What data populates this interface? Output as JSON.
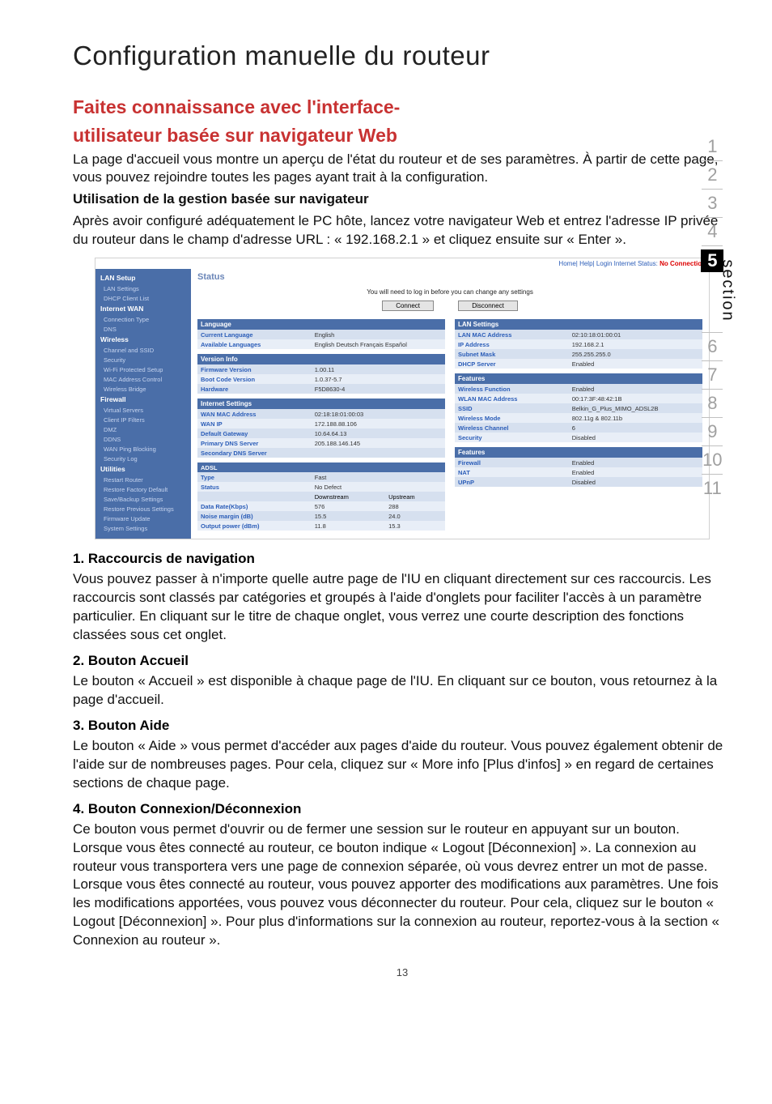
{
  "page": {
    "main_title": "Configuration manuelle du routeur",
    "page_number": "13"
  },
  "sec1": {
    "h_l1": "Faites connaissance avec l'interface-",
    "h_l2": "utilisateur basée sur navigateur Web",
    "p1": "La page d'accueil vous montre un aperçu de l'état du routeur et de ses paramètres. À partir de cette page, vous pouvez rejoindre toutes les pages ayant trait à la configuration.",
    "p2_bold": "Utilisation de la gestion basée sur navigateur",
    "p3": "Après avoir configuré adéquatement le PC hôte, lancez votre navigateur Web et entrez l'adresse IP privée du routeur dans le champ d'adresse URL : « 192.168.2.1 » et cliquez ensuite sur « Enter »."
  },
  "items": {
    "i1_h": "1. Raccourcis de navigation",
    "i1_p": "Vous pouvez passer à n'importe quelle autre page de l'IU en cliquant directement sur ces raccourcis. Les raccourcis sont classés par catégories et groupés à l'aide d'onglets pour faciliter l'accès à un paramètre particulier. En cliquant sur le titre de chaque onglet, vous verrez une courte description des fonctions classées sous cet onglet.",
    "i2_h": "2.   Bouton Accueil",
    "i2_p": "Le bouton « Accueil » est disponible à chaque page de l'IU. En cliquant sur ce bouton, vous retournez à la page d'accueil.",
    "i3_h": "3. Bouton Aide",
    "i3_p": "Le bouton « Aide » vous permet d'accéder aux pages d'aide du routeur. Vous pouvez également obtenir de l'aide sur de nombreuses pages. Pour cela, cliquez sur « More info [Plus d'infos] » en regard de certaines sections de chaque page.",
    "i4_h": "4.   Bouton Connexion/Déconnexion",
    "i4_p": "Ce bouton vous permet d'ouvrir ou de fermer une session sur le routeur en appuyant sur un bouton. Lorsque vous êtes connecté au routeur, ce bouton indique « Logout [Déconnexion] ». La connexion au routeur vous transportera vers une page de connexion séparée, où vous devrez entrer un mot de passe. Lorsque vous êtes connecté au routeur, vous pouvez apporter des modifications aux paramètres. Une fois les modifications apportées, vous pouvez vous déconnecter du routeur. Pour cela, cliquez sur le bouton « Logout [Déconnexion] ». Pour plus d'informations sur la connexion au routeur, reportez-vous à la section « Connexion au routeur »."
  },
  "sidenav": {
    "section_label": "section",
    "nums": [
      "1",
      "2",
      "3",
      "4",
      "5",
      "6",
      "7",
      "8",
      "9",
      "10",
      "11"
    ],
    "active": "5"
  },
  "router": {
    "top_links": "Home| Help| Login   Internet Status:",
    "top_status": "No Connection",
    "status_label": "Status",
    "note": "You will need to log in before you can change any settings",
    "btn_connect": "Connect",
    "btn_disconnect": "Disconnect",
    "nav": [
      {
        "h": "LAN Setup"
      },
      {
        "i": "LAN Settings"
      },
      {
        "i": "DHCP Client List"
      },
      {
        "h": "Internet WAN"
      },
      {
        "i": "Connection Type"
      },
      {
        "i": "DNS"
      },
      {
        "h": "Wireless"
      },
      {
        "i": "Channel and SSID"
      },
      {
        "i": "Security"
      },
      {
        "i": "Wi-Fi Protected Setup"
      },
      {
        "i": "MAC Address Control"
      },
      {
        "i": "Wireless Bridge"
      },
      {
        "h": "Firewall"
      },
      {
        "i": "Virtual Servers"
      },
      {
        "i": "Client IP Filters"
      },
      {
        "i": "DMZ"
      },
      {
        "i": "DDNS"
      },
      {
        "i": "WAN Ping Blocking"
      },
      {
        "i": "Security Log"
      },
      {
        "h": "Utilities"
      },
      {
        "i": "Restart Router"
      },
      {
        "i": "Restore Factory Default"
      },
      {
        "i": "Save/Backup Settings"
      },
      {
        "i": "Restore Previous Settings"
      },
      {
        "i": "Firmware Update"
      },
      {
        "i": "System Settings"
      }
    ],
    "lang": {
      "grp": "Language",
      "cur_k": "Current Language",
      "cur_v": "English",
      "avail_k": "Available Languages",
      "avail_v": "English  Deutsch  Français  Español"
    },
    "ver": {
      "grp": "Version Info",
      "r": [
        [
          "Firmware Version",
          "1.00.11"
        ],
        [
          "Boot Code Version",
          "1.0.37-5.7"
        ],
        [
          "Hardware",
          "F5D8630-4"
        ]
      ]
    },
    "inet": {
      "grp": "Internet Settings",
      "r": [
        [
          "WAN MAC Address",
          "02:18:18:01:00:03"
        ],
        [
          "WAN IP",
          "172.188.88.106"
        ],
        [
          "Default Gateway",
          "10.64.64.13"
        ],
        [
          "Primary DNS Server",
          "205.188.146.145"
        ],
        [
          "Secondary DNS Server",
          ""
        ]
      ]
    },
    "adsl": {
      "grp": "ADSL",
      "type_k": "Type",
      "type_v": "Fast",
      "status_k": "Status",
      "status_v": "No Defect",
      "h_ds": "Downstream",
      "h_us": "Upstream",
      "r": [
        [
          "Data Rate(Kbps)",
          "576",
          "288"
        ],
        [
          "Noise margin (dB)",
          "15.5",
          "24.0"
        ],
        [
          "Output power (dBm)",
          "11.8",
          "15.3"
        ]
      ]
    },
    "lan": {
      "grp": "LAN Settings",
      "r": [
        [
          "LAN MAC Address",
          "02:10:18:01:00:01"
        ],
        [
          "IP Address",
          "192.168.2.1"
        ],
        [
          "Subnet Mask",
          "255.255.255.0"
        ],
        [
          "DHCP Server",
          "Enabled"
        ]
      ]
    },
    "feat": {
      "grp": "Features",
      "r": [
        [
          "Wireless Function",
          "Enabled"
        ],
        [
          "WLAN MAC Address",
          "00:17:3F:48:42:1B"
        ],
        [
          "SSID",
          "Belkin_G_Plus_MIMO_ADSL2B"
        ],
        [
          "Wireless Mode",
          "802.11g & 802.11b"
        ],
        [
          "Wireless Channel",
          "6"
        ],
        [
          "Security",
          "Disabled"
        ]
      ]
    },
    "feat2": {
      "grp": "Features",
      "r": [
        [
          "Firewall",
          "Enabled"
        ],
        [
          "NAT",
          "Enabled"
        ],
        [
          "UPnP",
          "Disabled"
        ]
      ]
    }
  }
}
